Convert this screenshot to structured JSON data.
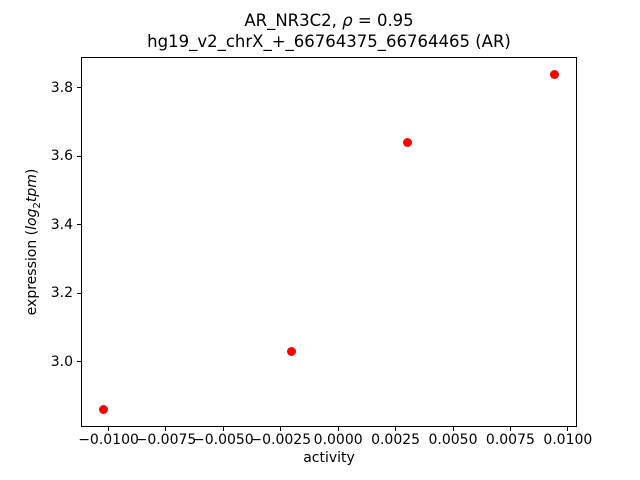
{
  "figure": {
    "title_line1_prefix": "AR_NR3C2, ",
    "title_line1_rho": "ρ",
    "title_line1_suffix": " = 0.95",
    "title_line2": "hg19_v2_chrX_+_66764375_66764465 (AR)",
    "xlabel": "activity",
    "ylabel_prefix": "expression (",
    "ylabel_log": "log",
    "ylabel_sub": "2",
    "ylabel_tpm": "tpm",
    "ylabel_suffix": ")"
  },
  "chart_data": {
    "type": "scatter",
    "title": "AR_NR3C2, ρ = 0.95",
    "subtitle": "hg19_v2_chrX_+_66764375_66764465 (AR)",
    "xlabel": "activity",
    "ylabel": "expression (log2 tpm)",
    "correlation_rho": 0.95,
    "grid": false,
    "legend": null,
    "series": [
      {
        "name": "samples",
        "marker": "circle",
        "color": "#ff0000",
        "points": [
          {
            "x": -0.0102,
            "y": 2.86
          },
          {
            "x": -0.00205,
            "y": 3.03
          },
          {
            "x": 0.003,
            "y": 3.64
          },
          {
            "x": 0.0094,
            "y": 3.84
          }
        ]
      }
    ],
    "xlim": [
      -0.0112,
      0.0104
    ],
    "ylim": [
      2.81,
      3.89
    ],
    "xticks": [
      -0.01,
      -0.0075,
      -0.005,
      -0.0025,
      0,
      0.0025,
      0.005,
      0.0075,
      0.01
    ],
    "xtick_labels": [
      "−0.0100",
      "−0.0075",
      "−0.0050",
      "−0.0025",
      "0.0000",
      "0.0025",
      "0.0050",
      "0.0075",
      "0.0100"
    ],
    "yticks": [
      3.0,
      3.2,
      3.4,
      3.6,
      3.8
    ],
    "ytick_labels": [
      "3.0",
      "3.2",
      "3.4",
      "3.6",
      "3.8"
    ]
  }
}
